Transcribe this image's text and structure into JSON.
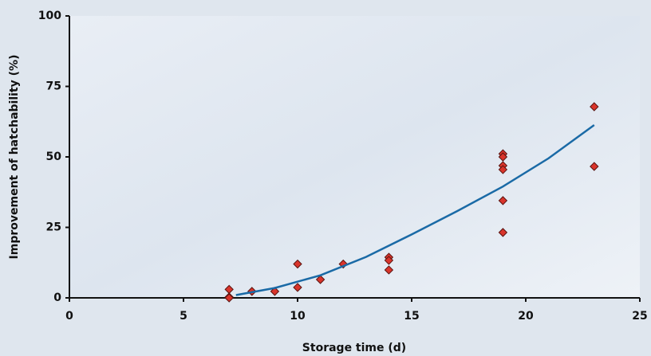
{
  "chart_data": {
    "type": "scatter",
    "x_label": "Storage time (d)",
    "y_label": "Improvement of hatchability (%)",
    "xlim": [
      0,
      25
    ],
    "xticks": [
      0,
      5,
      10,
      15,
      20,
      25
    ],
    "ylim": [
      0,
      100
    ],
    "yticks": [
      0,
      25,
      50,
      75,
      100
    ],
    "series": [
      {
        "type": "scatter",
        "color": "#d9342b",
        "x": [
          7,
          7,
          7,
          8,
          9,
          10,
          10,
          11,
          12,
          14,
          14,
          14,
          19,
          19,
          19,
          19,
          19,
          19,
          23,
          23
        ],
        "values": [
          3,
          0.3,
          0,
          2.3,
          2.3,
          12,
          3.7,
          6.5,
          12,
          14.4,
          13.3,
          9.9,
          51.1,
          50,
          46.9,
          45.5,
          34.5,
          23.2,
          67.8,
          46.6
        ]
      },
      {
        "type": "line",
        "color": "#1a6aa6",
        "x": [
          7.3,
          9,
          11,
          13,
          15,
          17,
          19,
          21,
          23
        ],
        "values": [
          1,
          3.5,
          8,
          14.5,
          22.5,
          30.8,
          39.5,
          49.5,
          61.3
        ]
      }
    ]
  }
}
